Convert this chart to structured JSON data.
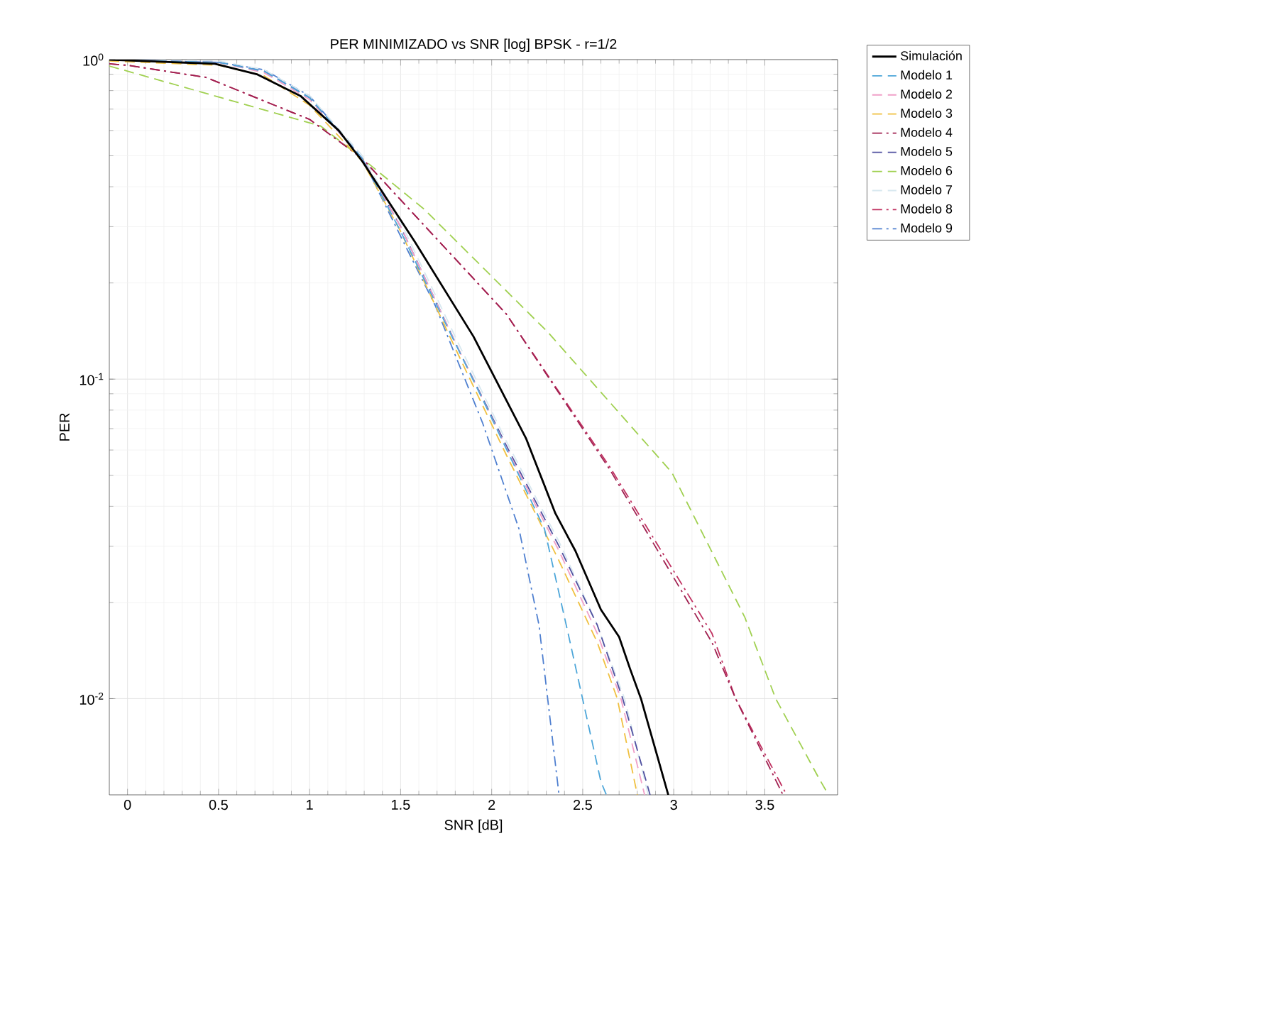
{
  "chart_data": {
    "type": "line",
    "title": "PER MINIMIZADO vs SNR [log]   BPSK - r=1/2",
    "xlabel": "SNR [dB]",
    "ylabel": "PER",
    "log": "y",
    "grid": true,
    "legend": "right",
    "marker": "none",
    "xlim": [
      -0.1,
      3.9
    ],
    "ylim": [
      0.005,
      1
    ],
    "xticks": [
      0,
      0.5,
      1,
      1.5,
      2,
      2.5,
      3,
      3.5
    ],
    "yticks": [
      {
        "value": 0.01,
        "label": "10$^{-2}$"
      },
      {
        "value": 0.1,
        "label": "10$^{-1}$"
      },
      {
        "value": 1,
        "label": "10$^{0}$"
      }
    ],
    "series": [
      {
        "name": "Simulación",
        "color": "#000000",
        "line_style": "solid",
        "x": [
          -0.1,
          0.48,
          0.71,
          0.95,
          1.16,
          1.29,
          1.58,
          1.9,
          2.19,
          2.35,
          2.46,
          2.6,
          2.7,
          2.76,
          2.82,
          2.91,
          2.97
        ],
        "values": [
          1,
          0.97,
          0.9,
          0.77,
          0.6,
          0.48,
          0.268,
          0.136,
          0.065,
          0.038,
          0.029,
          0.019,
          0.0156,
          0.0124,
          0.01,
          0.0066,
          0.005
        ]
      },
      {
        "name": "Modelo 1",
        "color": "#4da6d9",
        "line_style": "dashed",
        "x": [
          -0.1,
          0.5,
          0.75,
          1,
          1.29,
          1.5,
          1.97,
          2.29,
          2.42,
          2.6,
          2.63
        ],
        "values": [
          1,
          0.98,
          0.92,
          0.76,
          0.49,
          0.29,
          0.082,
          0.034,
          0.016,
          0.0055,
          0.005
        ]
      },
      {
        "name": "Modelo 2",
        "color": "#f0a0c8",
        "line_style": "dashed",
        "x": [
          -0.1,
          0.5,
          0.75,
          1,
          1.29,
          1.5,
          1.83,
          2.08,
          2.37,
          2.58,
          2.71,
          2.84
        ],
        "values": [
          1,
          0.98,
          0.91,
          0.75,
          0.49,
          0.3,
          0.12,
          0.061,
          0.029,
          0.016,
          0.01,
          0.005
        ]
      },
      {
        "name": "Modelo 3",
        "color": "#f0c040",
        "line_style": "dashed",
        "x": [
          -0.1,
          0.5,
          0.75,
          1,
          1.29,
          1.5,
          1.83,
          2.08,
          2.37,
          2.58,
          2.69,
          2.8
        ],
        "values": [
          0.99,
          0.96,
          0.89,
          0.72,
          0.48,
          0.29,
          0.115,
          0.058,
          0.027,
          0.015,
          0.01,
          0.005
        ]
      },
      {
        "name": "Modelo 4",
        "color": "#a02050",
        "line_style": "dashdot",
        "x": [
          -0.1,
          0,
          0.43,
          1,
          1.29,
          2.08,
          2.65,
          3.21,
          3.34,
          3.6
        ],
        "values": [
          0.97,
          0.96,
          0.88,
          0.65,
          0.49,
          0.16,
          0.052,
          0.015,
          0.01,
          0.005
        ]
      },
      {
        "name": "Modelo 5",
        "color": "#5050a0",
        "line_style": "dashed",
        "x": [
          -0.1,
          0.5,
          0.75,
          1,
          1.29,
          1.5,
          1.83,
          2.08,
          2.37,
          2.58,
          2.72,
          2.87
        ],
        "values": [
          1,
          0.98,
          0.92,
          0.76,
          0.49,
          0.3,
          0.12,
          0.062,
          0.03,
          0.017,
          0.01,
          0.005
        ]
      },
      {
        "name": "Modelo 6",
        "color": "#a0d050",
        "line_style": "dashed",
        "x": [
          -0.1,
          1.06,
          1.29,
          1.63,
          2.31,
          2.99,
          3.39,
          3.56,
          3.8,
          3.85
        ],
        "values": [
          0.955,
          0.62,
          0.49,
          0.34,
          0.14,
          0.051,
          0.018,
          0.01,
          0.0056,
          0.005
        ]
      },
      {
        "name": "Modelo 7",
        "color": "#d8e8f0",
        "line_style": "dashed",
        "x": [
          -0.1,
          0.5,
          0.75,
          1,
          1.29,
          1.5,
          1.83,
          2.08,
          2.37,
          2.58,
          2.73,
          2.86
        ],
        "values": [
          1,
          0.99,
          0.93,
          0.77,
          0.5,
          0.31,
          0.125,
          0.064,
          0.031,
          0.017,
          0.01,
          0.005
        ]
      },
      {
        "name": "Modelo 8",
        "color": "#c03060",
        "line_style": "dashdot",
        "x": [
          -0.1,
          0,
          0.43,
          1,
          1.29,
          2.08,
          2.65,
          3.21,
          3.34,
          3.62
        ],
        "values": [
          0.97,
          0.96,
          0.88,
          0.65,
          0.49,
          0.16,
          0.053,
          0.016,
          0.01,
          0.005
        ]
      },
      {
        "name": "Modelo 9",
        "color": "#5080d0",
        "line_style": "dashdot",
        "x": [
          -0.1,
          0.5,
          0.75,
          1,
          1.29,
          1.5,
          1.69,
          1.95,
          2.15,
          2.26,
          2.37
        ],
        "values": [
          1,
          0.98,
          0.93,
          0.77,
          0.49,
          0.28,
          0.17,
          0.073,
          0.034,
          0.017,
          0.005
        ]
      }
    ]
  }
}
